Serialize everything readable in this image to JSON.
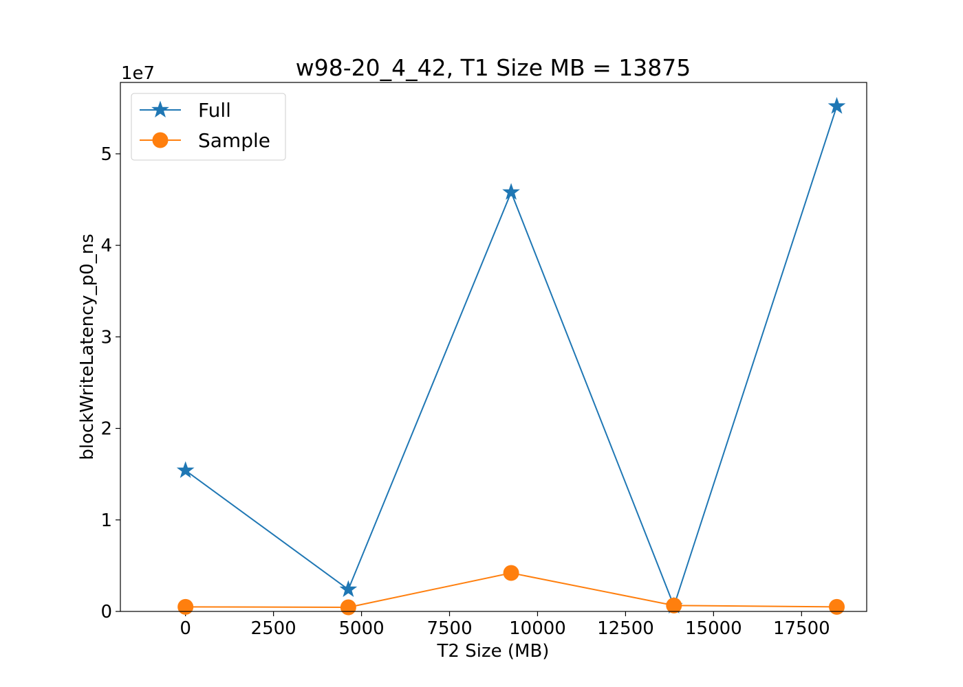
{
  "chart_data": {
    "type": "line",
    "title": "w98-20_4_42, T1 Size MB = 13875",
    "xlabel": "T2 Size (MB)",
    "ylabel": "blockWriteLatency_p0_ns",
    "y_offset_label": "1e7",
    "xlim": [
      -1850,
      19350
    ],
    "ylim": [
      0,
      5.78
    ],
    "x_ticks": [
      0,
      2500,
      5000,
      7500,
      10000,
      12500,
      15000,
      17500
    ],
    "y_ticks": [
      0,
      1,
      2,
      3,
      4,
      5
    ],
    "grid": false,
    "legend_position": "top-left",
    "series": [
      {
        "name": "Full",
        "color": "#1f77b4",
        "marker": "star",
        "x": [
          0,
          4625,
          9250,
          13875,
          18500
        ],
        "y": [
          1.54,
          0.24,
          4.58,
          0.06,
          5.52
        ]
      },
      {
        "name": "Sample",
        "color": "#ff7f0e",
        "marker": "circle",
        "x": [
          0,
          4625,
          9250,
          13875,
          18500
        ],
        "y": [
          0.05,
          0.045,
          0.42,
          0.065,
          0.05
        ]
      }
    ]
  }
}
